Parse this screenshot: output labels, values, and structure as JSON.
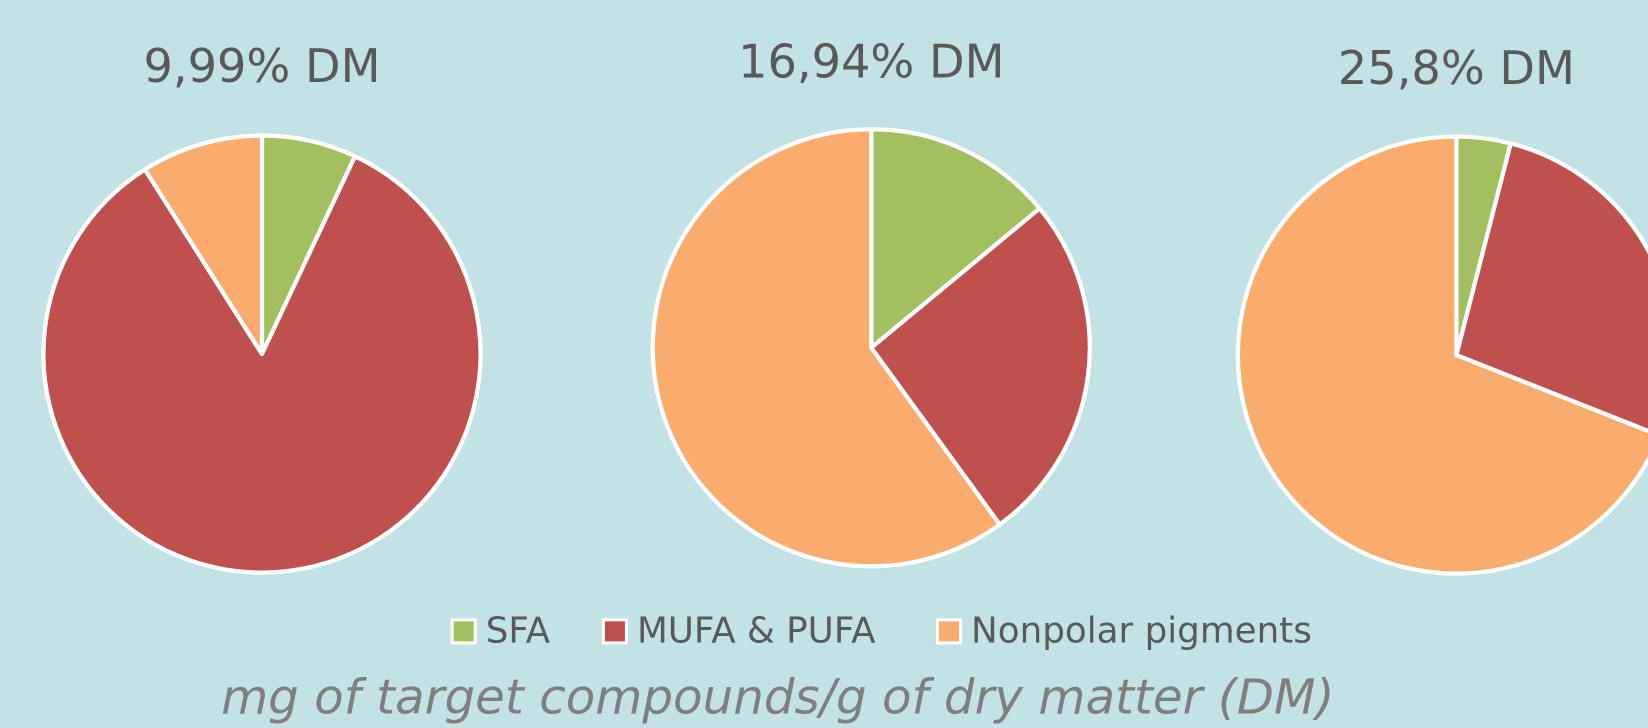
{
  "chart_data": [
    {
      "type": "pie",
      "title": "9,99%  DM",
      "categories": [
        "SFA",
        "MUFA & PUFA",
        "Nonpolar pigments"
      ],
      "values": [
        7,
        84,
        9
      ],
      "colors": [
        "#a2c05f",
        "#c0504e",
        "#f9ac6d"
      ]
    },
    {
      "type": "pie",
      "title": "16,94% DM",
      "categories": [
        "SFA",
        "MUFA & PUFA",
        "Nonpolar pigments"
      ],
      "values": [
        14,
        26,
        60
      ],
      "colors": [
        "#a2c05f",
        "#c0504e",
        "#f9ac6d"
      ]
    },
    {
      "type": "pie",
      "title": "25,8% DM",
      "categories": [
        "SFA",
        "MUFA & PUFA",
        "Nonpolar pigments"
      ],
      "values": [
        4,
        27,
        69
      ],
      "colors": [
        "#a2c05f",
        "#c0504e",
        "#f9ac6d"
      ]
    }
  ],
  "caption": "mg of target compounds/g of dry matter (DM)"
}
